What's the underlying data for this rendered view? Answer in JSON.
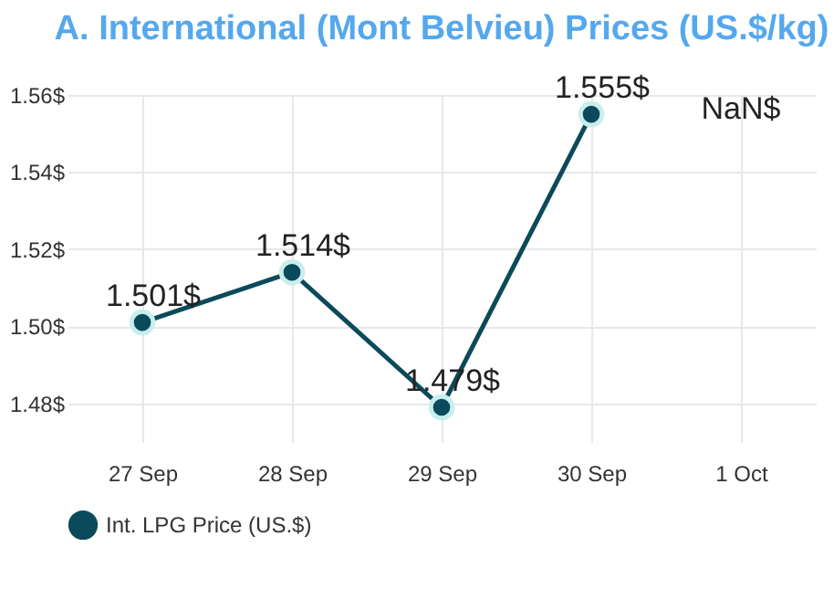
{
  "chart_data": {
    "type": "line",
    "title": "A. International (Mont Belvieu) Prices (US.$/kg)",
    "categories": [
      "27 Sep",
      "28 Sep",
      "29 Sep",
      "30 Sep",
      "1 Oct"
    ],
    "series": [
      {
        "name": "Int. LPG Price (US.$)",
        "color": "#0b4a5a",
        "values": [
          1.501,
          1.514,
          1.479,
          1.555,
          null
        ],
        "value_labels": [
          "1.501$",
          "1.514$",
          "1.479$",
          "1.555$",
          "NaN$"
        ]
      }
    ],
    "ylim": [
      1.47,
      1.56
    ],
    "yticks": [
      {
        "value": 1.48,
        "label": "1.48$"
      },
      {
        "value": 1.5,
        "label": "1.50$"
      },
      {
        "value": 1.52,
        "label": "1.52$"
      },
      {
        "value": 1.54,
        "label": "1.54$"
      },
      {
        "value": 1.56,
        "label": "1.56$"
      }
    ],
    "grid": true,
    "legend": "bottom",
    "marker": "circle",
    "line_style": "solid"
  }
}
